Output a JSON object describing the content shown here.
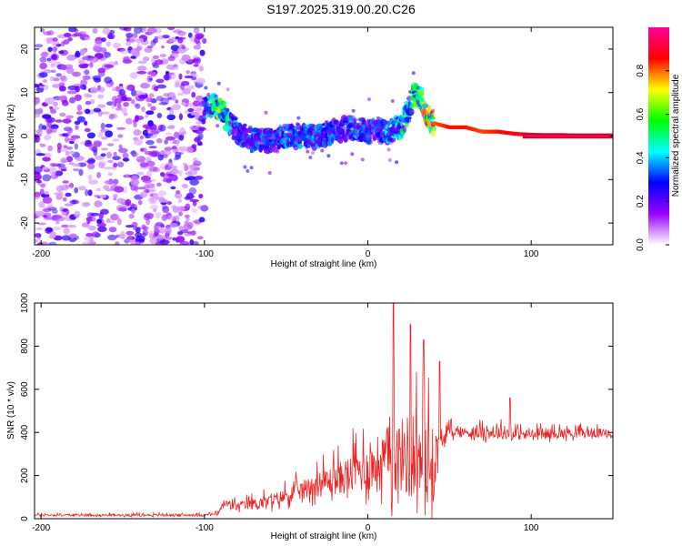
{
  "title": "S197.2025.319.00.20.C26",
  "chart_data": [
    {
      "type": "heatmap",
      "name": "spectrogram",
      "xlabel": "Height of straight line (km)",
      "ylabel": "Frequency (Hz)",
      "xlim": [
        -204,
        150
      ],
      "ylim": [
        -25,
        25
      ],
      "xticks": [
        -200,
        -100,
        0,
        100
      ],
      "yticks": [
        -20,
        -10,
        0,
        10,
        20
      ],
      "colorbar": {
        "label": "Normalized spectral amplitude",
        "range": [
          0.0,
          1.0
        ],
        "ticks": [
          "0.0",
          "0.2",
          "0.4",
          "0.6",
          "0.8"
        ],
        "colors": [
          "#ffffff",
          "#9900ff",
          "#0000ff",
          "#00ffff",
          "#00ff00",
          "#ffff00",
          "#ff0000",
          "#ff0099"
        ]
      },
      "noise_region_x": [
        -204,
        -100
      ],
      "ridge": {
        "x": [
          -100,
          -95,
          -90,
          -85,
          -80,
          -75,
          -70,
          -60,
          -50,
          -40,
          -30,
          -20,
          -10,
          0,
          10,
          20,
          25,
          28,
          32,
          36,
          40,
          50,
          60,
          70,
          80,
          90,
          100,
          110,
          120,
          130,
          140,
          150
        ],
        "freq": [
          6,
          7,
          6,
          3,
          1,
          0,
          -1,
          -1,
          0,
          0,
          0,
          1,
          2,
          1,
          1,
          2,
          6,
          10,
          9,
          5,
          3,
          2,
          2,
          1,
          1,
          0.5,
          0.3,
          0.2,
          0.2,
          0.1,
          0.1,
          0.1
        ],
        "amplitude": [
          0.3,
          0.45,
          0.55,
          0.4,
          0.3,
          0.28,
          0.3,
          0.3,
          0.32,
          0.3,
          0.32,
          0.3,
          0.32,
          0.3,
          0.35,
          0.4,
          0.45,
          0.5,
          0.55,
          0.7,
          0.8,
          0.85,
          0.85,
          0.82,
          0.85,
          0.88,
          0.9,
          0.92,
          0.92,
          0.92,
          0.92,
          0.92
        ]
      }
    },
    {
      "type": "line",
      "name": "snr",
      "xlabel": "Height of straight line (km)",
      "ylabel": "SNR (10 * v/v)",
      "xlim": [
        -204,
        150
      ],
      "ylim": [
        0,
        1000
      ],
      "xticks": [
        -200,
        -100,
        0,
        100
      ],
      "yticks": [
        0,
        200,
        400,
        600,
        800,
        1000
      ],
      "color": "#ee2222",
      "envelope": {
        "x": [
          -204,
          -100,
          -92,
          -88,
          -80,
          -60,
          -40,
          -20,
          -10,
          0,
          10,
          15,
          20,
          25,
          30,
          35,
          40,
          45,
          50,
          60,
          80,
          100,
          120,
          150
        ],
        "base": [
          15,
          15,
          20,
          60,
          50,
          70,
          120,
          160,
          180,
          200,
          220,
          230,
          240,
          240,
          220,
          200,
          180,
          350,
          400,
          390,
          390,
          380,
          390,
          390
        ],
        "amp": [
          10,
          10,
          15,
          50,
          40,
          60,
          90,
          140,
          180,
          220,
          300,
          350,
          350,
          380,
          400,
          400,
          350,
          60,
          50,
          50,
          60,
          50,
          45,
          40
        ]
      },
      "peaks": [
        {
          "x": 15.5,
          "y": 1000
        },
        {
          "x": 26,
          "y": 900
        },
        {
          "x": 34,
          "y": 830
        },
        {
          "x": 44,
          "y": 730
        },
        {
          "x": 87,
          "y": 560
        }
      ]
    }
  ]
}
